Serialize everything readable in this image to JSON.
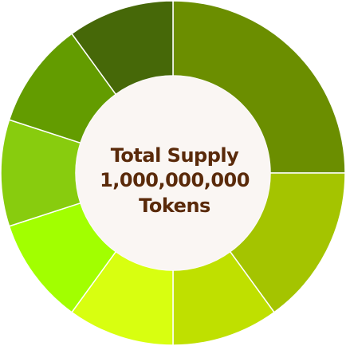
{
  "chart_data": {
    "type": "pie",
    "style": "donut",
    "center_label": {
      "line1": "Total Supply",
      "line2": "1,000,000,000",
      "line3": "Tokens"
    },
    "slices": [
      {
        "value": 25,
        "color": "#6b8e00"
      },
      {
        "value": 15,
        "color": "#a4c400"
      },
      {
        "value": 10,
        "color": "#bfe000"
      },
      {
        "value": 10,
        "color": "#d8ff10"
      },
      {
        "value": 10,
        "color": "#a2ff00"
      },
      {
        "value": 10,
        "color": "#88cc0e"
      },
      {
        "value": 10,
        "color": "#639c00"
      },
      {
        "value": 10,
        "color": "#466808"
      }
    ],
    "center_fill": "#faf6f3",
    "separator_color": "#ffffff",
    "legend": "none"
  }
}
